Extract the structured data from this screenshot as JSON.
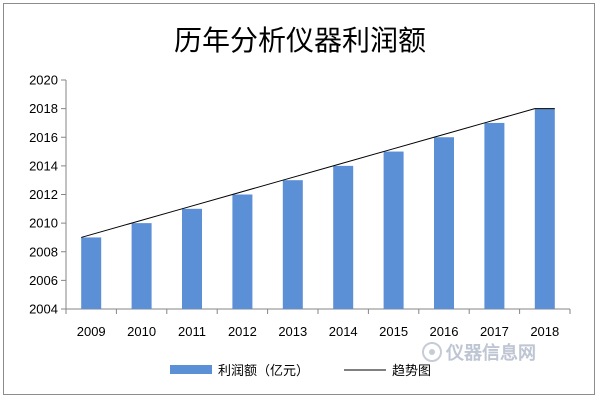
{
  "chart_data": {
    "type": "bar",
    "title": "历年分析仪器利润额",
    "categories": [
      "2009",
      "2010",
      "2011",
      "2012",
      "2013",
      "2014",
      "2015",
      "2016",
      "2017",
      "2018"
    ],
    "series": [
      {
        "name": "利润额（亿元）",
        "values": [
          2009,
          2010,
          2011,
          2012,
          2013,
          2014,
          2015,
          2016,
          2017,
          2018
        ],
        "color": "#5b8fd6"
      }
    ],
    "trendline": {
      "name": "趋势图",
      "values": [
        2009,
        2010,
        2011,
        2012,
        2013,
        2014,
        2015,
        2016,
        2017,
        2018
      ],
      "color": "#000000"
    },
    "ylim": [
      2004,
      2020
    ],
    "yticks": [
      2004,
      2006,
      2008,
      2010,
      2012,
      2014,
      2016,
      2018,
      2020
    ],
    "grid": false,
    "legend_position": "bottom",
    "xlabel": "",
    "ylabel": ""
  },
  "watermark": {
    "text": "仪器信息网",
    "icon": "instrument-logo-icon"
  }
}
